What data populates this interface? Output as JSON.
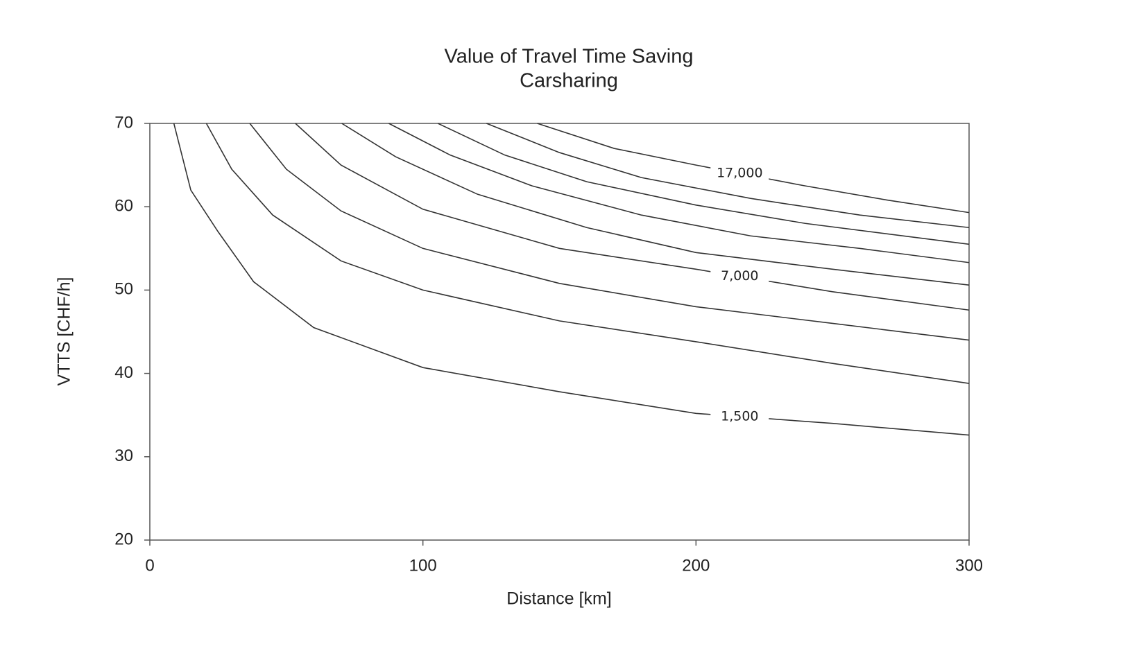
{
  "chart_data": {
    "type": "contour-line",
    "title": "Value of Travel Time Saving",
    "subtitle": "Carsharing",
    "xlabel": "Distance [km]",
    "ylabel": "VTTS [CHF/h]",
    "xlim": [
      0,
      300
    ],
    "xticks": [
      0,
      100,
      200,
      300
    ],
    "ylim": [
      20,
      70
    ],
    "yticks": [
      20,
      30,
      40,
      50,
      60,
      70
    ],
    "grid": false,
    "color": "#333333",
    "series": [
      {
        "name": "1,500",
        "x": [
          8.8,
          15,
          25,
          38,
          60,
          100,
          150,
          200,
          250,
          300
        ],
        "values": [
          70,
          62,
          57,
          51,
          45.5,
          40.7,
          37.8,
          35.2,
          34,
          32.6
        ]
      },
      {
        "x": [
          20.7,
          30,
          45,
          70,
          100,
          150,
          200,
          250,
          300
        ],
        "values": [
          70,
          64.5,
          59,
          53.5,
          50,
          46.3,
          43.8,
          41.2,
          38.8
        ]
      },
      {
        "x": [
          36.6,
          50,
          70,
          100,
          150,
          200,
          250,
          300
        ],
        "values": [
          70,
          64.5,
          59.5,
          55,
          50.8,
          48,
          46,
          44
        ]
      },
      {
        "name": "7,000",
        "x": [
          53.3,
          70,
          100,
          150,
          200,
          250,
          300
        ],
        "values": [
          70,
          65,
          59.7,
          55,
          52.5,
          49.8,
          47.6
        ]
      },
      {
        "x": [
          70.3,
          90,
          120,
          160,
          200,
          250,
          300
        ],
        "values": [
          70,
          66,
          61.5,
          57.5,
          54.5,
          52.5,
          50.6
        ]
      },
      {
        "x": [
          87.5,
          110,
          140,
          180,
          220,
          260,
          300
        ],
        "values": [
          70,
          66.2,
          62.5,
          59,
          56.5,
          55,
          53.3
        ]
      },
      {
        "x": [
          105.5,
          130,
          160,
          200,
          240,
          300
        ],
        "values": [
          70,
          66.2,
          63,
          60.2,
          58,
          55.5
        ]
      },
      {
        "x": [
          123.3,
          150,
          180,
          220,
          260,
          300
        ],
        "values": [
          70,
          66.5,
          63.5,
          61,
          59,
          57.5
        ]
      },
      {
        "name": "17,000",
        "x": [
          141.9,
          170,
          200,
          240,
          270,
          300
        ],
        "values": [
          70,
          67,
          65,
          62.5,
          60.8,
          59.3
        ]
      }
    ]
  }
}
